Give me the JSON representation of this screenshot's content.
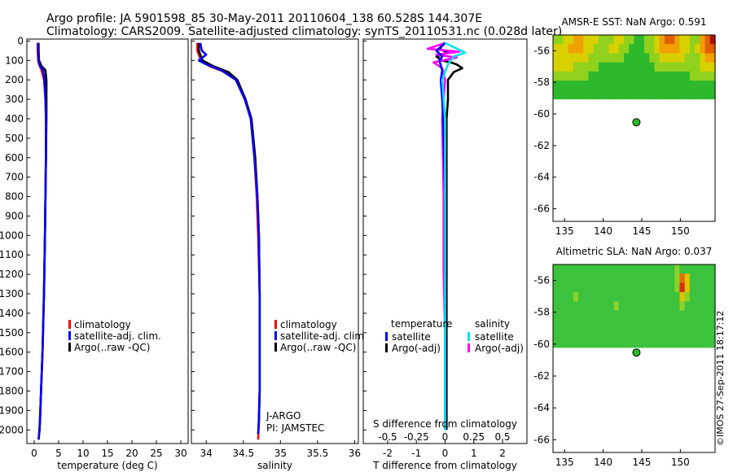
{
  "header": {
    "line1": "Argo profile: JA 5901598_85 30-May-2011 20110604_138 60.528S 144.307E",
    "line2": "Climatology: CARS2009. Satellite-adjusted climatology: synTS_20110531.nc (0.028d later)"
  },
  "colors": {
    "climatology": "#ff0000",
    "satellite": "#0000ff",
    "argo": "#000000",
    "satellite_s": "#00e5ee",
    "argo_s": "#ff00ff",
    "float_marker": "#22bb22"
  },
  "footer": {
    "stamp": "©IMOS 27-Sep-2011 18:17:12"
  },
  "chart_data": [
    {
      "id": "temperature",
      "type": "line",
      "xlabel": "temperature (deg C)",
      "ylabel": "",
      "xlim": [
        -1.5,
        31.5
      ],
      "ylim": [
        2070,
        -10
      ],
      "xticks": [
        0,
        5,
        10,
        15,
        20,
        25,
        30
      ],
      "xtick_labels": [
        "0",
        "5",
        "10",
        "15",
        "20",
        "25",
        "30"
      ],
      "yticks": [
        0,
        100,
        200,
        300,
        400,
        500,
        600,
        700,
        800,
        900,
        1000,
        1100,
        1200,
        1300,
        1400,
        1500,
        1600,
        1700,
        1800,
        1900,
        2000
      ],
      "ytick_labels": [
        "0",
        "100",
        "200",
        "300",
        "400",
        "500",
        "600",
        "700",
        "800",
        "900",
        "1000",
        "1100",
        "1200",
        "1300",
        "1400",
        "1500",
        "1600",
        "1700",
        "1800",
        "1900",
        "2000"
      ],
      "legend": [
        "climatology",
        "satellite-adj. clim.",
        "Argo(..raw -QC)"
      ],
      "series": [
        {
          "name": "climatology",
          "color": "#ff0000",
          "x": [
            0.7,
            0.7,
            0.8,
            1.0,
            1.5,
            2.0,
            2.3,
            2.4,
            2.4,
            2.3,
            2.2,
            2.0,
            1.7,
            1.4,
            1.1,
            0.9
          ],
          "y": [
            10,
            50,
            100,
            120,
            150,
            200,
            300,
            400,
            600,
            800,
            1000,
            1300,
            1600,
            1800,
            2000,
            2050
          ]
        },
        {
          "name": "Argo(..raw -QC)",
          "color": "#000000",
          "x": [
            0.9,
            0.9,
            1.0,
            1.5,
            2.3,
            2.5,
            2.5,
            2.5,
            2.4,
            2.3,
            2.2,
            2.0,
            1.7,
            1.4,
            1.2,
            1.0
          ],
          "y": [
            10,
            50,
            100,
            130,
            150,
            200,
            300,
            400,
            600,
            800,
            1000,
            1300,
            1600,
            1800,
            1950,
            2020
          ]
        },
        {
          "name": "satellite-adj. clim.",
          "color": "#0000ff",
          "x": [
            0.8,
            0.8,
            0.9,
            1.2,
            1.8,
            2.1,
            2.3,
            2.4,
            2.4,
            2.3,
            2.2,
            2.0,
            1.7,
            1.4,
            1.1,
            0.9
          ],
          "y": [
            10,
            50,
            100,
            130,
            150,
            200,
            300,
            400,
            600,
            800,
            1000,
            1300,
            1600,
            1800,
            2000,
            2050
          ]
        }
      ]
    },
    {
      "id": "salinity",
      "type": "line",
      "xlabel": "salinity",
      "ylabel": "",
      "xlim": [
        33.8,
        36.05
      ],
      "ylim": [
        2070,
        -10
      ],
      "xticks": [
        34,
        34.5,
        35,
        35.5,
        36
      ],
      "xtick_labels": [
        "34",
        "34.5",
        "35",
        "35.5",
        "36"
      ],
      "legend": [
        "climatology",
        "satellite-adj. clim.",
        "Argo(..raw -QC)"
      ],
      "annotation": [
        "J-ARGO",
        "PI: JAMSTEC"
      ],
      "series": [
        {
          "name": "climatology",
          "color": "#ff0000",
          "x": [
            33.88,
            33.88,
            33.93,
            34.05,
            34.25,
            34.4,
            34.52,
            34.6,
            34.65,
            34.68,
            34.7,
            34.72,
            34.72,
            34.72,
            34.71,
            34.7
          ],
          "y": [
            10,
            50,
            100,
            130,
            160,
            200,
            300,
            400,
            600,
            800,
            1000,
            1300,
            1600,
            1800,
            1950,
            2050
          ]
        },
        {
          "name": "Argo(..raw -QC)",
          "color": "#000000",
          "x": [
            33.9,
            33.9,
            33.95,
            34.1,
            34.3,
            34.42,
            34.53,
            34.61,
            34.66,
            34.69,
            34.71,
            34.72,
            34.72,
            34.72,
            34.71,
            34.7
          ],
          "y": [
            10,
            50,
            100,
            130,
            160,
            200,
            300,
            400,
            600,
            800,
            1000,
            1300,
            1600,
            1800,
            1950,
            2020
          ]
        },
        {
          "name": "satellite-adj. clim.",
          "color": "#0000ff",
          "x": [
            33.92,
            33.94,
            34.0,
            33.9,
            34.0,
            34.2,
            34.4,
            34.52,
            34.6,
            34.65,
            34.69,
            34.71,
            34.72,
            34.72,
            34.72,
            34.71,
            34.7
          ],
          "y": [
            10,
            50,
            70,
            100,
            120,
            150,
            200,
            300,
            400,
            600,
            800,
            1000,
            1300,
            1600,
            1800,
            1950,
            2020
          ]
        }
      ]
    },
    {
      "id": "difference",
      "type": "line",
      "xlabel": "T difference from climatology",
      "xlabel_top": "S difference from climatology",
      "xlim": [
        -2.85,
        2.85
      ],
      "ylim": [
        2070,
        -10
      ],
      "xticks": [
        -2,
        -1,
        0,
        1,
        2
      ],
      "xtick_labels": [
        "-2",
        "-1",
        "0",
        "1",
        "2"
      ],
      "s_ticks": [
        -0.5,
        -0.25,
        0,
        0.25,
        0.5
      ],
      "s_tick_labels": [
        "-0.5",
        "-0.25",
        "0",
        "0.25",
        "0.5"
      ],
      "legend_temperature": {
        "title": "temperature",
        "items": [
          "satellite",
          "Argo(-adj)"
        ]
      },
      "legend_salinity": {
        "title": "salinity",
        "items": [
          "satellite",
          "Argo(-adj)"
        ]
      },
      "series": [
        {
          "name": "temperature Argo(-adj)",
          "color": "#000000",
          "x": [
            0,
            -0.2,
            0.1,
            -0.3,
            -0.1,
            0.2,
            0.4,
            0.6,
            0.3,
            0.1,
            0.1,
            0.05,
            0.05,
            0.05,
            0.05,
            0.05,
            0.05,
            0.05,
            0.05,
            0.05
          ],
          "y": [
            10,
            40,
            60,
            80,
            100,
            110,
            120,
            140,
            160,
            200,
            300,
            400,
            600,
            800,
            1000,
            1200,
            1500,
            1700,
            1900,
            2000
          ]
        },
        {
          "name": "salinity Argo(-adj)",
          "color": "#ff00ff",
          "x": [
            0,
            -0.6,
            0.5,
            -0.3,
            0.4,
            -0.4,
            -0.1,
            0.0,
            -0.1,
            -0.05,
            -0.05,
            0,
            0,
            0
          ],
          "y": [
            10,
            40,
            55,
            70,
            85,
            110,
            140,
            200,
            400,
            800,
            1200,
            1500,
            1800,
            2000
          ]
        },
        {
          "name": "temperature satellite",
          "color": "#0000ff",
          "x": [
            0,
            -0.3,
            -0.1,
            -0.2,
            -0.1,
            -0.15,
            -0.1,
            -0.05,
            0,
            0,
            0,
            0
          ],
          "y": [
            10,
            50,
            80,
            100,
            150,
            200,
            300,
            500,
            800,
            1200,
            1600,
            2000
          ]
        },
        {
          "name": "salinity satellite",
          "color": "#00e5ee",
          "x": [
            0,
            0.7,
            0.3,
            0.1,
            -0.1,
            0.0,
            0.0,
            0.0,
            0.0,
            0.0
          ],
          "y": [
            10,
            60,
            80,
            120,
            200,
            400,
            800,
            1200,
            1600,
            2000
          ]
        }
      ]
    },
    {
      "id": "amsr-sst",
      "type": "heatmap",
      "title": "AMSR-E SST: NaN Argo: 0.591",
      "xlim": [
        133.5,
        154.5
      ],
      "ylim": [
        -66.8,
        -55
      ],
      "xticks": [
        135,
        140,
        145,
        150
      ],
      "xtick_labels": [
        "135",
        "140",
        "145",
        "150"
      ],
      "yticks": [
        -56,
        -58,
        -60,
        -62,
        -64,
        -66
      ],
      "ytick_labels": [
        "-56",
        "-58",
        "-60",
        "-62",
        "-64",
        "-66"
      ],
      "data_top_lat": -55,
      "data_bottom_lat": -60.2,
      "float_position": {
        "lon": 144.307,
        "lat": -60.528
      },
      "field": [
        [
          2,
          2,
          3,
          3,
          4,
          4,
          3,
          3,
          3,
          2,
          2,
          2,
          3,
          3,
          2,
          2,
          1,
          1,
          2,
          2,
          3,
          4,
          5,
          5,
          4,
          3,
          3,
          2,
          2,
          4,
          5,
          6
        ],
        [
          3,
          3,
          3,
          4,
          4,
          4,
          3,
          3,
          2,
          2,
          2,
          3,
          3,
          2,
          2,
          1,
          1,
          1,
          2,
          2,
          3,
          4,
          4,
          4,
          4,
          3,
          3,
          2,
          3,
          4,
          5,
          5
        ],
        [
          3,
          3,
          3,
          3,
          3,
          3,
          3,
          2,
          2,
          2,
          2,
          2,
          2,
          2,
          1,
          1,
          1,
          1,
          1,
          2,
          2,
          3,
          3,
          3,
          3,
          3,
          2,
          2,
          2,
          3,
          4,
          4
        ],
        [
          3,
          3,
          3,
          3,
          2,
          2,
          2,
          2,
          2,
          1,
          1,
          1,
          1,
          1,
          1,
          1,
          1,
          1,
          1,
          1,
          2,
          2,
          2,
          2,
          2,
          2,
          2,
          2,
          2,
          3,
          3,
          3
        ],
        [
          2,
          2,
          2,
          2,
          2,
          2,
          2,
          1,
          1,
          1,
          1,
          1,
          1,
          1,
          1,
          1,
          0,
          0,
          1,
          1,
          1,
          1,
          1,
          1,
          1,
          1,
          1,
          2,
          2,
          2,
          2,
          2
        ],
        [
          1,
          1,
          1,
          1,
          1,
          1,
          1,
          1,
          1,
          1,
          1,
          1,
          1,
          0,
          0,
          0,
          0,
          0,
          0,
          1,
          1,
          1,
          1,
          1,
          1,
          1,
          1,
          1,
          1,
          1,
          1,
          1
        ],
        [
          1,
          1,
          1,
          1,
          1,
          1,
          0,
          0,
          0,
          0,
          0,
          0,
          0,
          0,
          0,
          0,
          0,
          0,
          0,
          0,
          0,
          0,
          0,
          0,
          0,
          1,
          1,
          1,
          1,
          1,
          1,
          1
        ],
        [
          0,
          0,
          0,
          0,
          0,
          0,
          0,
          0,
          0,
          0,
          0,
          0,
          0,
          0,
          0,
          0,
          0,
          0,
          0,
          0,
          0,
          0,
          0,
          0,
          0,
          0,
          0,
          0,
          0,
          0,
          0,
          0
        ],
        [
          0,
          0,
          0,
          0,
          0,
          0,
          0,
          0,
          0,
          0,
          0,
          0,
          0,
          0,
          0,
          0,
          0,
          0,
          0,
          0,
          0,
          0,
          0,
          0,
          0,
          0,
          0,
          0,
          0,
          0,
          0,
          0
        ]
      ]
    },
    {
      "id": "altimetric-sla",
      "type": "heatmap",
      "title": "Altimetric SLA: NaN Argo: 0.037",
      "xlim": [
        133.5,
        154.5
      ],
      "ylim": [
        -66.8,
        -55
      ],
      "xticks": [
        135,
        140,
        145,
        150
      ],
      "xtick_labels": [
        "135",
        "140",
        "145",
        "150"
      ],
      "yticks": [
        -56,
        -58,
        -60,
        -62,
        -64,
        -66
      ],
      "ytick_labels": [
        "-56",
        "-58",
        "-60",
        "-62",
        "-64",
        "-66"
      ],
      "data_top_lat": -55,
      "data_bottom_lat": -60.2,
      "float_position": {
        "lon": 144.307,
        "lat": -60.528
      },
      "field": [
        [
          1,
          1,
          1,
          1,
          1,
          1,
          1,
          1,
          1,
          1,
          1,
          1,
          1,
          1,
          1,
          1,
          1,
          1,
          1,
          1,
          1,
          1,
          1,
          1,
          2,
          1,
          1,
          1,
          1,
          1,
          1,
          1
        ],
        [
          1,
          1,
          1,
          1,
          1,
          1,
          1,
          1,
          1,
          1,
          1,
          1,
          1,
          1,
          1,
          1,
          1,
          1,
          1,
          1,
          1,
          1,
          1,
          1,
          2,
          4,
          3,
          1,
          1,
          1,
          1,
          1
        ],
        [
          1,
          1,
          1,
          1,
          1,
          1,
          1,
          1,
          1,
          1,
          1,
          1,
          1,
          1,
          1,
          1,
          1,
          1,
          1,
          1,
          1,
          1,
          1,
          1,
          2,
          5,
          3,
          1,
          1,
          1,
          1,
          1
        ],
        [
          1,
          1,
          1,
          1,
          2,
          1,
          1,
          1,
          1,
          1,
          1,
          1,
          1,
          1,
          1,
          1,
          1,
          1,
          1,
          1,
          1,
          1,
          1,
          1,
          1,
          3,
          2,
          1,
          1,
          1,
          1,
          1
        ],
        [
          1,
          1,
          1,
          1,
          1,
          1,
          1,
          1,
          1,
          1,
          1,
          1,
          2,
          1,
          1,
          1,
          1,
          1,
          1,
          1,
          1,
          1,
          1,
          1,
          1,
          2,
          1,
          1,
          1,
          1,
          1,
          1
        ],
        [
          1,
          1,
          1,
          1,
          1,
          1,
          1,
          1,
          1,
          1,
          1,
          1,
          1,
          1,
          1,
          1,
          1,
          1,
          1,
          1,
          1,
          1,
          1,
          1,
          1,
          1,
          1,
          1,
          1,
          1,
          1,
          1
        ],
        [
          1,
          1,
          1,
          1,
          1,
          1,
          1,
          1,
          1,
          1,
          1,
          1,
          1,
          1,
          1,
          1,
          1,
          1,
          1,
          1,
          1,
          1,
          1,
          1,
          1,
          1,
          1,
          1,
          1,
          1,
          1,
          1
        ],
        [
          1,
          1,
          1,
          1,
          1,
          1,
          1,
          1,
          1,
          1,
          1,
          1,
          1,
          1,
          1,
          1,
          1,
          1,
          1,
          1,
          1,
          1,
          1,
          1,
          1,
          1,
          1,
          1,
          1,
          1,
          1,
          1
        ],
        [
          1,
          1,
          1,
          1,
          1,
          1,
          1,
          1,
          1,
          1,
          1,
          1,
          1,
          1,
          1,
          1,
          1,
          1,
          1,
          1,
          1,
          1,
          1,
          1,
          1,
          1,
          1,
          1,
          1,
          1,
          1,
          1
        ]
      ]
    }
  ]
}
